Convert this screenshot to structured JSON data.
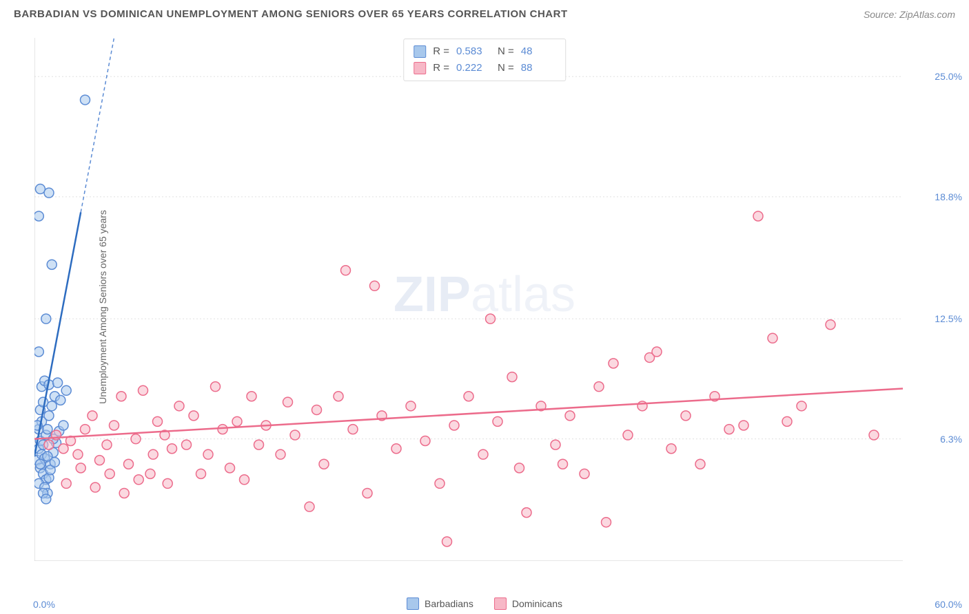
{
  "header": {
    "title": "BARBADIAN VS DOMINICAN UNEMPLOYMENT AMONG SENIORS OVER 65 YEARS CORRELATION CHART",
    "source_prefix": "Source: ",
    "source_name": "ZipAtlas.com"
  },
  "watermark": {
    "zip": "ZIP",
    "atlas": "atlas"
  },
  "chart": {
    "type": "scatter",
    "y_axis_label": "Unemployment Among Seniors over 65 years",
    "background_color": "#ffffff",
    "grid_color": "#e0e0e0",
    "border_color": "#cccccc",
    "x_range": [
      0,
      60
    ],
    "y_range": [
      0,
      27
    ],
    "x_origin_label": "0.0%",
    "x_max_label": "60.0%",
    "y_ticks": [
      {
        "value": 25.0,
        "label": "25.0%"
      },
      {
        "value": 18.8,
        "label": "18.8%"
      },
      {
        "value": 12.5,
        "label": "12.5%"
      },
      {
        "value": 6.3,
        "label": "6.3%"
      }
    ],
    "x_tick_positions": [
      7.5,
      15,
      22.5,
      30,
      37.5,
      45,
      52.5
    ],
    "marker_radius": 7,
    "marker_stroke_width": 1.5,
    "trend_line_width": 2.5,
    "stats_box": {
      "rows": [
        {
          "swatch_fill": "#a8c8ec",
          "swatch_stroke": "#5b8bd4",
          "r_label": "R =",
          "r_value": "0.583",
          "n_label": "N =",
          "n_value": "48"
        },
        {
          "swatch_fill": "#f7b8c7",
          "swatch_stroke": "#ec6b8b",
          "r_label": "R =",
          "r_value": "0.222",
          "n_label": "N =",
          "n_value": "88"
        }
      ]
    },
    "legend": [
      {
        "label": "Barbadians",
        "swatch_fill": "#a8c8ec",
        "swatch_stroke": "#5b8bd4"
      },
      {
        "label": "Dominicans",
        "swatch_fill": "#f7b8c7",
        "swatch_stroke": "#ec6b8b"
      }
    ],
    "series": [
      {
        "name": "Barbadians",
        "marker_fill": "rgba(168,200,236,0.55)",
        "marker_stroke": "#5b8bd4",
        "trend_color": "#2d6cc0",
        "trend_dash_color": "#5b8bd4",
        "trend": {
          "x1": 0,
          "y1": 5.4,
          "x2": 3.2,
          "y2": 18.0,
          "dash_x2": 5.5,
          "dash_y2": 27.0
        },
        "points": [
          [
            0.2,
            5.2
          ],
          [
            0.3,
            5.8
          ],
          [
            0.4,
            6.2
          ],
          [
            0.5,
            5.5
          ],
          [
            0.3,
            6.8
          ],
          [
            0.6,
            6.0
          ],
          [
            0.7,
            5.3
          ],
          [
            0.8,
            6.5
          ],
          [
            0.5,
            7.2
          ],
          [
            0.9,
            6.8
          ],
          [
            1.0,
            7.5
          ],
          [
            1.2,
            8.0
          ],
          [
            0.4,
            4.8
          ],
          [
            0.6,
            4.5
          ],
          [
            0.8,
            4.2
          ],
          [
            1.1,
            5.0
          ],
          [
            0.3,
            4.0
          ],
          [
            0.7,
            3.8
          ],
          [
            0.9,
            3.5
          ],
          [
            1.0,
            4.3
          ],
          [
            1.3,
            5.6
          ],
          [
            1.5,
            6.1
          ],
          [
            0.2,
            7.0
          ],
          [
            0.4,
            7.8
          ],
          [
            0.6,
            8.2
          ],
          [
            1.4,
            8.5
          ],
          [
            1.8,
            8.3
          ],
          [
            2.2,
            8.8
          ],
          [
            0.5,
            9.0
          ],
          [
            0.7,
            9.3
          ],
          [
            1.0,
            9.1
          ],
          [
            1.6,
            9.2
          ],
          [
            0.3,
            10.8
          ],
          [
            0.8,
            12.5
          ],
          [
            1.2,
            15.3
          ],
          [
            0.4,
            19.2
          ],
          [
            1.0,
            19.0
          ],
          [
            0.3,
            17.8
          ],
          [
            3.5,
            23.8
          ],
          [
            1.3,
            6.3
          ],
          [
            1.7,
            6.7
          ],
          [
            2.0,
            7.0
          ],
          [
            0.4,
            5.0
          ],
          [
            0.9,
            5.4
          ],
          [
            1.1,
            4.7
          ],
          [
            1.4,
            5.1
          ],
          [
            0.6,
            3.5
          ],
          [
            0.8,
            3.2
          ]
        ]
      },
      {
        "name": "Dominicans",
        "marker_fill": "rgba(247,184,199,0.55)",
        "marker_stroke": "#ec6b8b",
        "trend_color": "#ec6b8b",
        "trend": {
          "x1": 0,
          "y1": 6.3,
          "x2": 60,
          "y2": 8.9
        },
        "points": [
          [
            1.0,
            6.0
          ],
          [
            1.5,
            6.5
          ],
          [
            2.0,
            5.8
          ],
          [
            2.5,
            6.2
          ],
          [
            3.0,
            5.5
          ],
          [
            3.5,
            6.8
          ],
          [
            4.0,
            7.5
          ],
          [
            4.5,
            5.2
          ],
          [
            5.0,
            6.0
          ],
          [
            5.5,
            7.0
          ],
          [
            6.0,
            8.5
          ],
          [
            6.5,
            5.0
          ],
          [
            7.0,
            6.3
          ],
          [
            7.5,
            8.8
          ],
          [
            8.0,
            4.5
          ],
          [
            8.5,
            7.2
          ],
          [
            9.0,
            6.5
          ],
          [
            9.5,
            5.8
          ],
          [
            10.0,
            8.0
          ],
          [
            10.5,
            6.0
          ],
          [
            11.0,
            7.5
          ],
          [
            12.0,
            5.5
          ],
          [
            12.5,
            9.0
          ],
          [
            13.0,
            6.8
          ],
          [
            14.0,
            7.2
          ],
          [
            14.5,
            4.2
          ],
          [
            15.0,
            8.5
          ],
          [
            15.5,
            6.0
          ],
          [
            16.0,
            7.0
          ],
          [
            17.0,
            5.5
          ],
          [
            17.5,
            8.2
          ],
          [
            18.0,
            6.5
          ],
          [
            19.0,
            2.8
          ],
          [
            19.5,
            7.8
          ],
          [
            20.0,
            5.0
          ],
          [
            21.0,
            8.5
          ],
          [
            21.5,
            15.0
          ],
          [
            22.0,
            6.8
          ],
          [
            23.0,
            3.5
          ],
          [
            23.5,
            14.2
          ],
          [
            24.0,
            7.5
          ],
          [
            25.0,
            5.8
          ],
          [
            26.0,
            8.0
          ],
          [
            27.0,
            6.2
          ],
          [
            28.0,
            4.0
          ],
          [
            28.5,
            1.0
          ],
          [
            29.0,
            7.0
          ],
          [
            30.0,
            8.5
          ],
          [
            31.0,
            5.5
          ],
          [
            31.5,
            12.5
          ],
          [
            32.0,
            7.2
          ],
          [
            33.0,
            9.5
          ],
          [
            33.5,
            4.8
          ],
          [
            34.0,
            2.5
          ],
          [
            35.0,
            8.0
          ],
          [
            36.0,
            6.0
          ],
          [
            36.5,
            5.0
          ],
          [
            37.0,
            7.5
          ],
          [
            38.0,
            4.5
          ],
          [
            39.0,
            9.0
          ],
          [
            39.5,
            2.0
          ],
          [
            40.0,
            10.2
          ],
          [
            41.0,
            6.5
          ],
          [
            42.0,
            8.0
          ],
          [
            42.5,
            10.5
          ],
          [
            43.0,
            10.8
          ],
          [
            44.0,
            5.8
          ],
          [
            45.0,
            7.5
          ],
          [
            46.0,
            5.0
          ],
          [
            47.0,
            8.5
          ],
          [
            48.0,
            6.8
          ],
          [
            49.0,
            7.0
          ],
          [
            50.0,
            17.8
          ],
          [
            51.0,
            11.5
          ],
          [
            52.0,
            7.2
          ],
          [
            53.0,
            8.0
          ],
          [
            55.0,
            12.2
          ],
          [
            58.0,
            6.5
          ],
          [
            2.2,
            4.0
          ],
          [
            3.2,
            4.8
          ],
          [
            4.2,
            3.8
          ],
          [
            5.2,
            4.5
          ],
          [
            6.2,
            3.5
          ],
          [
            7.2,
            4.2
          ],
          [
            8.2,
            5.5
          ],
          [
            9.2,
            4.0
          ],
          [
            11.5,
            4.5
          ],
          [
            13.5,
            4.8
          ]
        ]
      }
    ]
  }
}
